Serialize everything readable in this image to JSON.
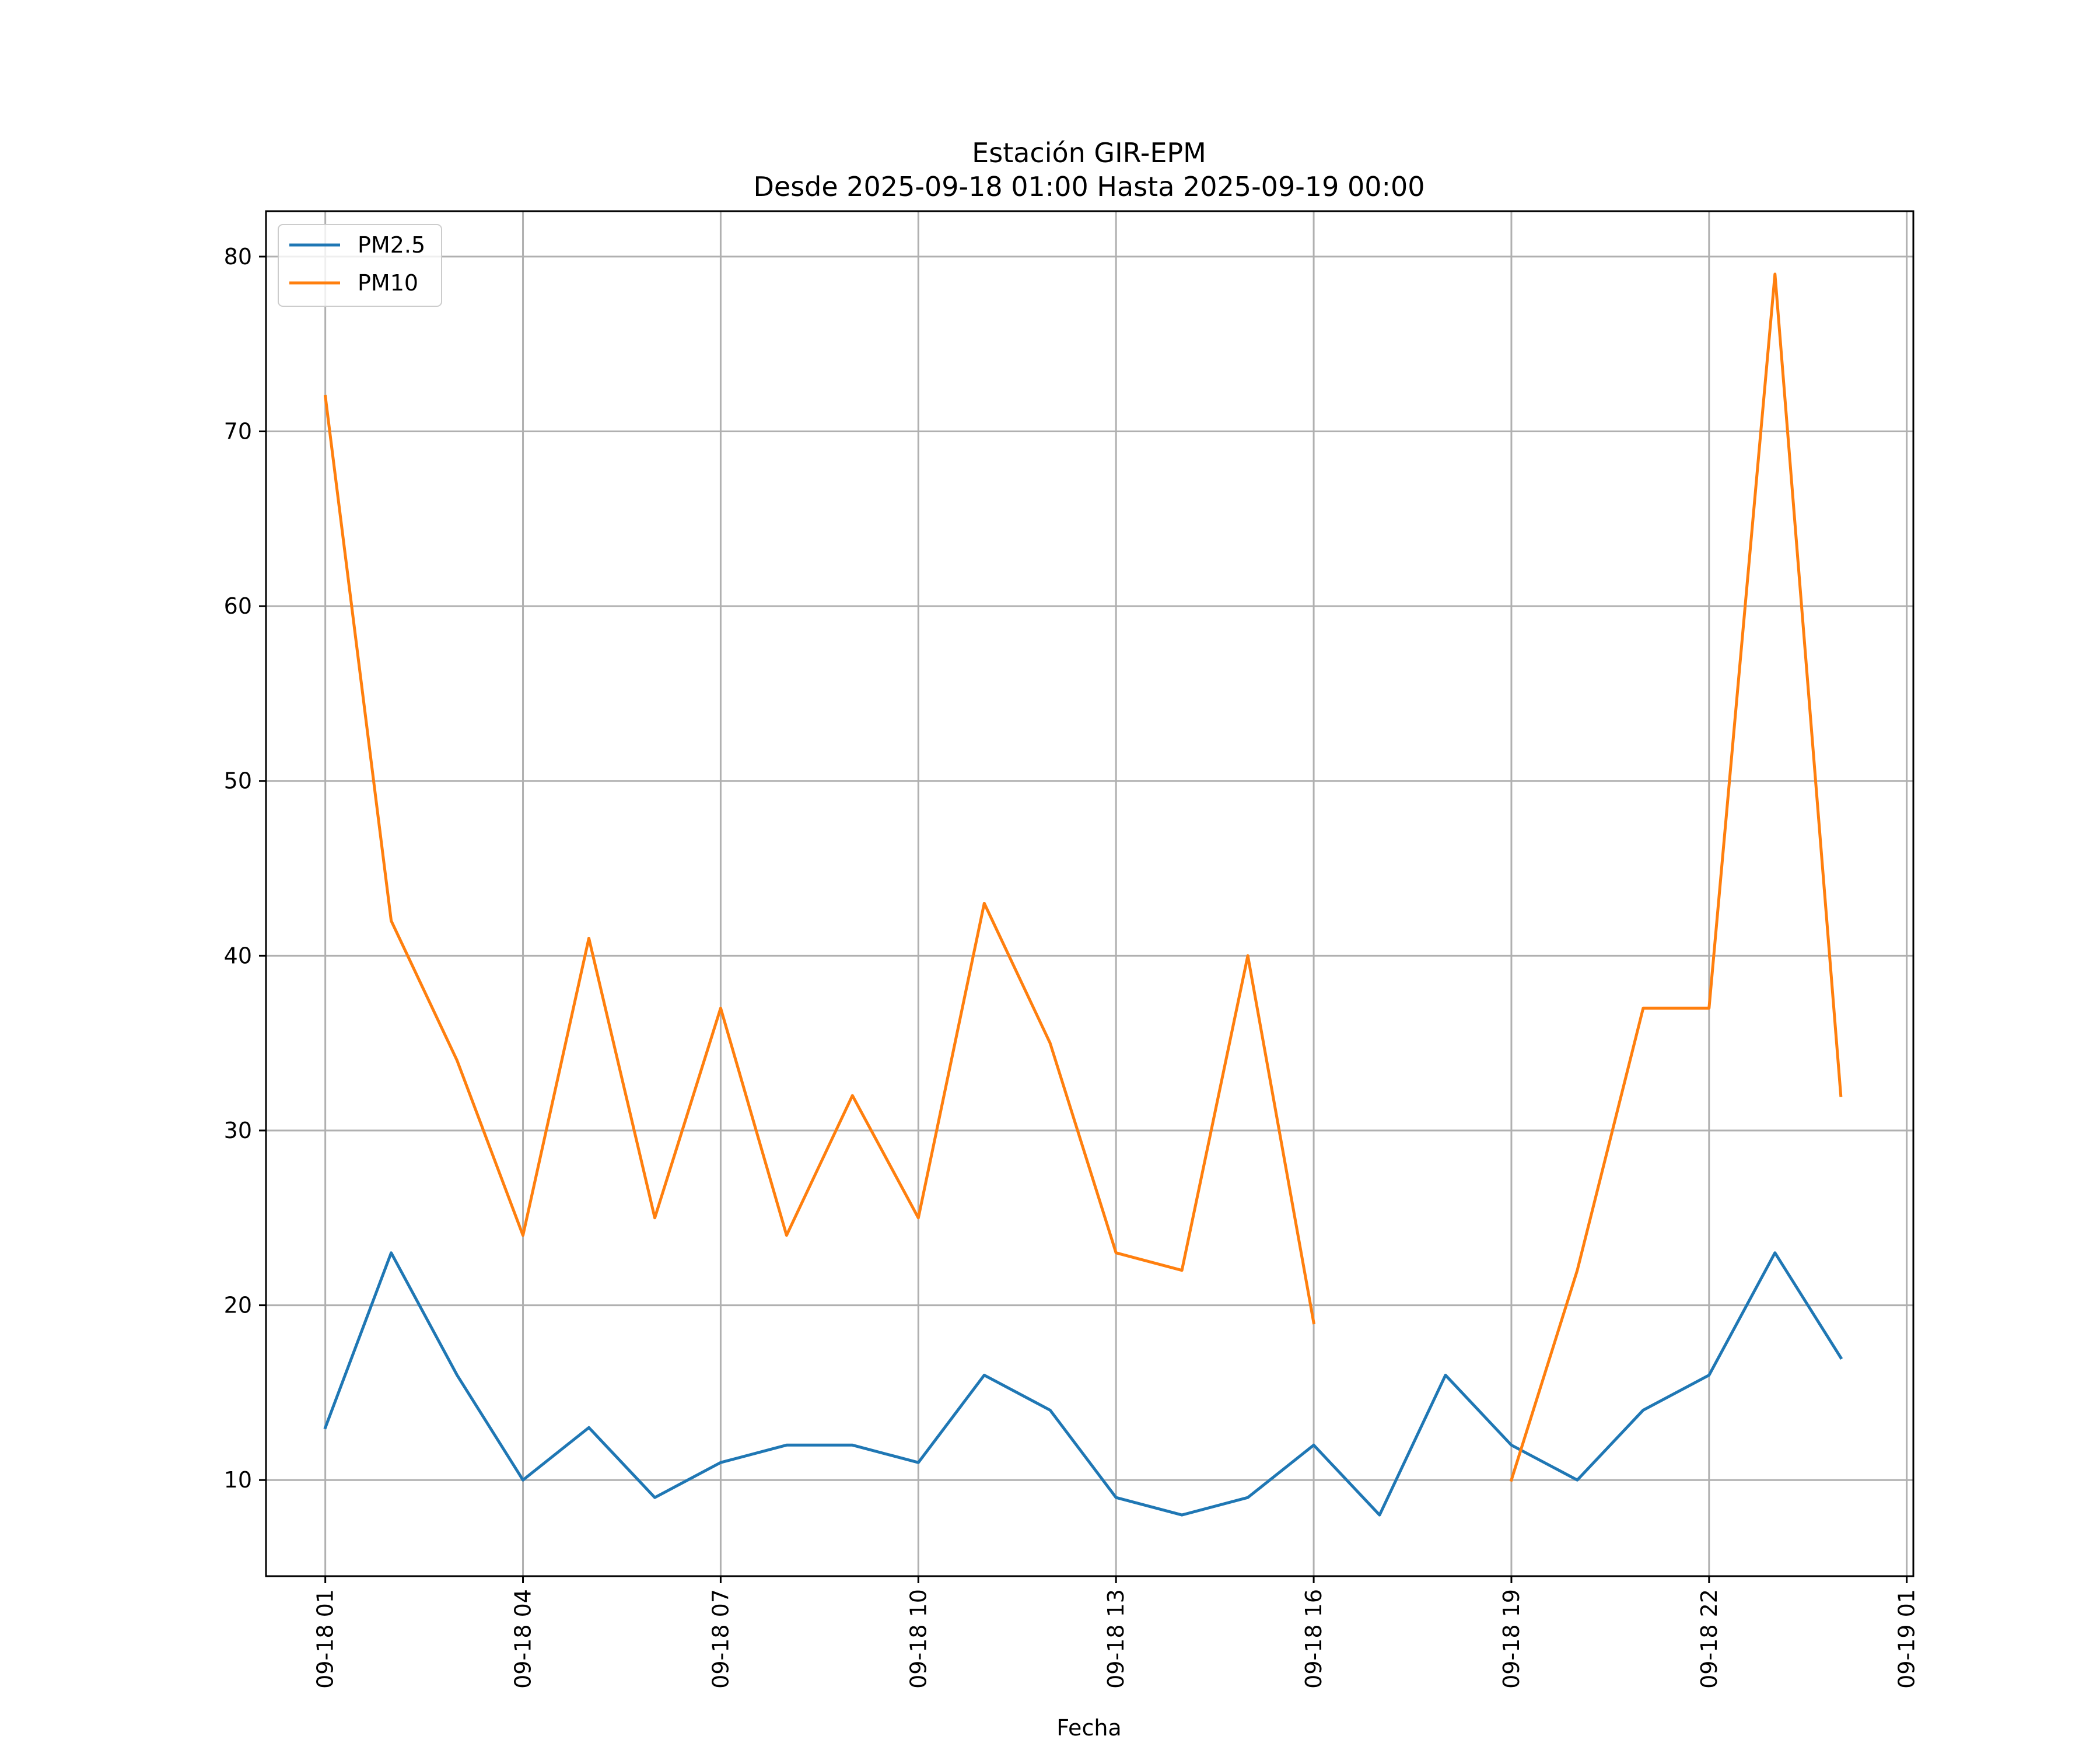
{
  "chart_data": {
    "type": "line",
    "title": "Estación GIR-EPM",
    "subtitle": "Desde 2025-09-18 01:00 Hasta 2025-09-19 00:00",
    "xlabel": "Fecha",
    "ylabel": "",
    "x": [
      "01:00",
      "02:00",
      "03:00",
      "04:00",
      "05:00",
      "06:00",
      "07:00",
      "08:00",
      "09:00",
      "10:00",
      "11:00",
      "12:00",
      "13:00",
      "14:00",
      "15:00",
      "16:00",
      "17:00",
      "18:00",
      "19:00",
      "20:00",
      "21:00",
      "22:00",
      "23:00",
      "00:00"
    ],
    "x_hours": [
      1,
      2,
      3,
      4,
      5,
      6,
      7,
      8,
      9,
      10,
      11,
      12,
      13,
      14,
      15,
      16,
      17,
      18,
      19,
      20,
      21,
      22,
      23,
      24
    ],
    "xlim": [
      0.1,
      25.1
    ],
    "xticks": [
      {
        "hour": 1,
        "label": "09-18 01"
      },
      {
        "hour": 4,
        "label": "09-18 04"
      },
      {
        "hour": 7,
        "label": "09-18 07"
      },
      {
        "hour": 10,
        "label": "09-18 10"
      },
      {
        "hour": 13,
        "label": "09-18 13"
      },
      {
        "hour": 16,
        "label": "09-18 16"
      },
      {
        "hour": 19,
        "label": "09-18 19"
      },
      {
        "hour": 22,
        "label": "09-18 22"
      },
      {
        "hour": 25,
        "label": "09-19 01"
      }
    ],
    "ylim": [
      4.5,
      82.6
    ],
    "yticks": [
      10,
      20,
      30,
      40,
      50,
      60,
      70,
      80
    ],
    "grid": true,
    "legend_position": "top-left",
    "series": [
      {
        "name": "PM2.5",
        "color": "#1f77b4",
        "values": [
          13,
          23,
          16,
          10,
          13,
          9,
          11,
          12,
          12,
          11,
          16,
          14,
          9,
          8,
          9,
          12,
          8,
          16,
          12,
          10,
          14,
          16,
          23,
          17
        ]
      },
      {
        "name": "PM10",
        "color": "#ff7f0e",
        "values": [
          72,
          42,
          34,
          24,
          41,
          25,
          37,
          24,
          32,
          25,
          43,
          35,
          23,
          22,
          40,
          19,
          null,
          null,
          10,
          22,
          37,
          37,
          79,
          32
        ]
      }
    ]
  }
}
